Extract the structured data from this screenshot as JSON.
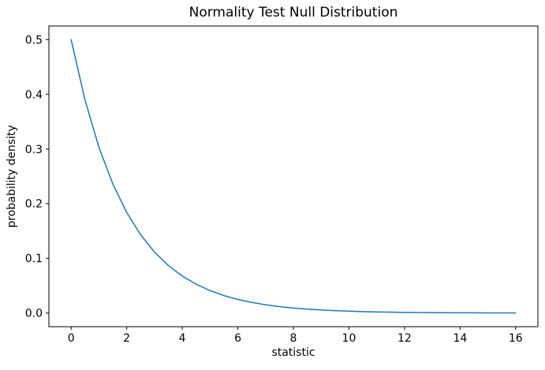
{
  "figure": {
    "background_color": "#ffffff",
    "text_color": "#000000",
    "spine_color": "#000000"
  },
  "chart_data": {
    "type": "line",
    "title": "Normality Test Null Distribution",
    "xlabel": "statistic",
    "ylabel": "probability density",
    "xlim": [
      -0.8,
      16.8
    ],
    "ylim": [
      -0.025,
      0.525
    ],
    "x_ticks": [
      0,
      2,
      4,
      6,
      8,
      10,
      12,
      14,
      16
    ],
    "y_ticks": [
      0.0,
      0.1,
      0.2,
      0.3,
      0.4,
      0.5
    ],
    "grid": false,
    "legend_visible": false,
    "line_color": "#1f77b4",
    "line_width": 1.5,
    "x": [
      0,
      0.5,
      1,
      1.5,
      2,
      2.5,
      3,
      3.5,
      4,
      4.5,
      5,
      5.5,
      6,
      6.5,
      7,
      7.5,
      8,
      8.5,
      9,
      9.5,
      10,
      10.5,
      11,
      11.5,
      12,
      12.5,
      13,
      13.5,
      14,
      14.5,
      15,
      15.5,
      16
    ],
    "y": [
      0.5,
      0.3894,
      0.30327,
      0.23618,
      0.18394,
      0.14325,
      0.11157,
      0.08689,
      0.06767,
      0.0527,
      0.04104,
      0.03196,
      0.02489,
      0.01939,
      0.0151,
      0.01176,
      0.00916,
      0.00713,
      0.00555,
      0.00433,
      0.00337,
      0.00262,
      0.00204,
      0.00159,
      0.00124,
      0.00097,
      0.00075,
      0.00059,
      0.00046,
      0.00036,
      0.00028,
      0.00022,
      0.00017
    ]
  }
}
